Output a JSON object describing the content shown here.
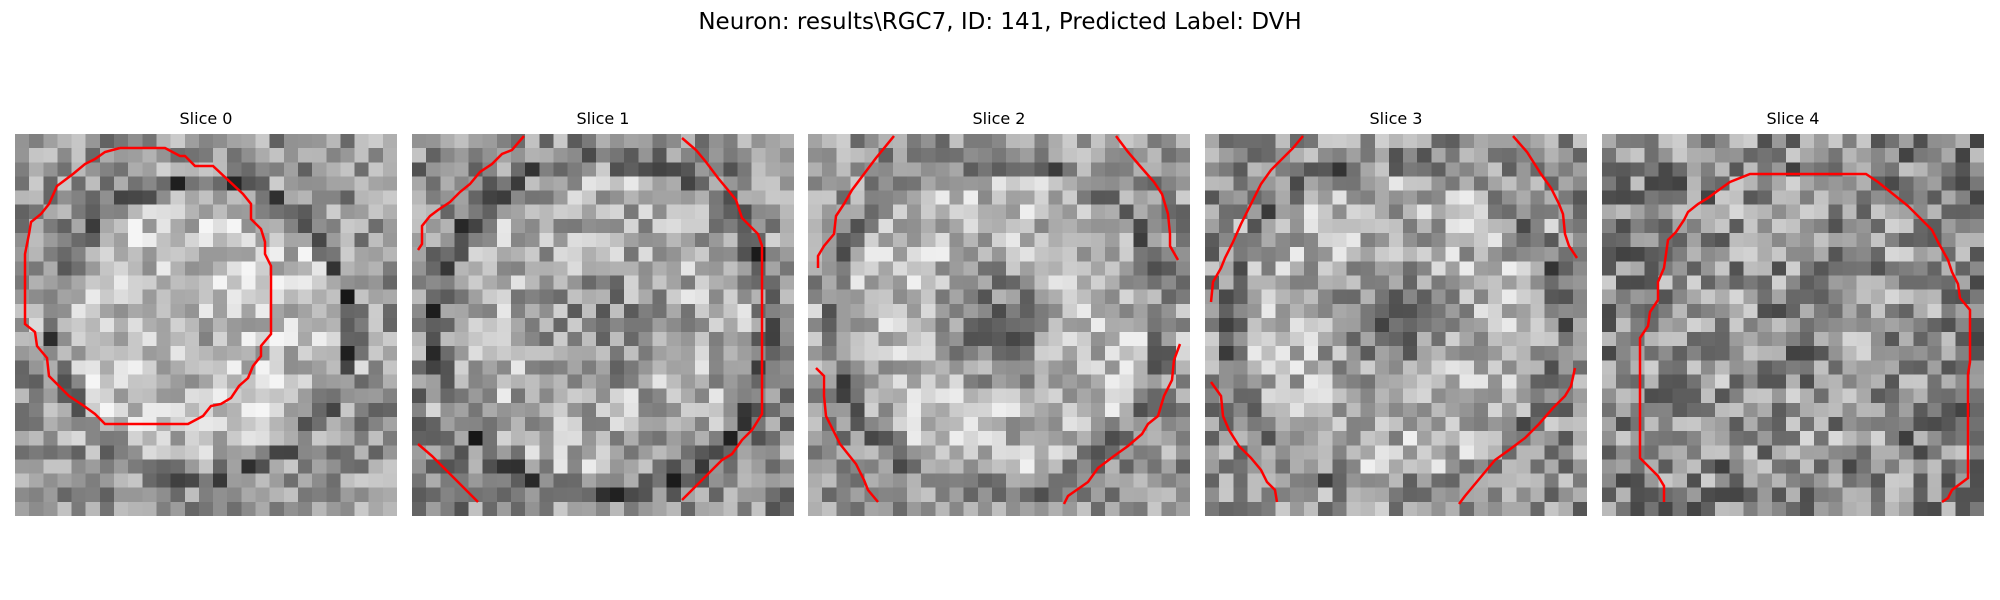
{
  "figure": {
    "title": "Neuron: results\\RGC7, ID: 141, Predicted Label: DVH"
  },
  "contour_color": "#ff0000",
  "colormap": "gray",
  "slices": [
    {
      "title": "Slice 0"
    },
    {
      "title": "Slice 1"
    },
    {
      "title": "Slice 2"
    },
    {
      "title": "Slice 3"
    },
    {
      "title": "Slice 4"
    }
  ]
}
